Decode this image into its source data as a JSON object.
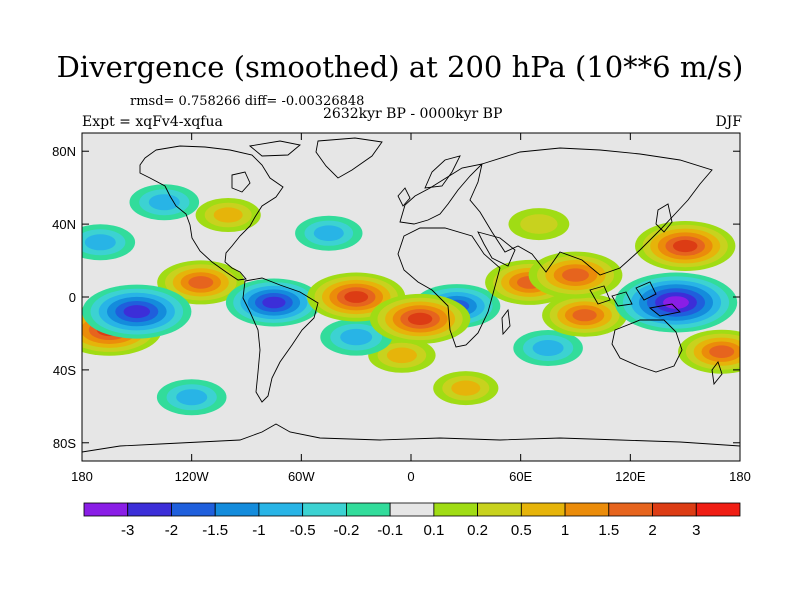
{
  "title": "Divergence (smoothed) at 200 hPa (10**6 m/s)",
  "stats": "rmsd= 0.758266 diff= -0.00326848",
  "period": "2632kyr BP - 0000kyr BP",
  "experiment": "Expt = xqFv4-xqfua",
  "season": "DJF",
  "axes": {
    "x_ticks": [
      {
        "value": -180,
        "label": "180"
      },
      {
        "value": -120,
        "label": "120W"
      },
      {
        "value": -60,
        "label": "60W"
      },
      {
        "value": 0,
        "label": "0"
      },
      {
        "value": 60,
        "label": "60E"
      },
      {
        "value": 120,
        "label": "120E"
      },
      {
        "value": 180,
        "label": "180"
      }
    ],
    "y_ticks": [
      {
        "value": 80,
        "label": "80N"
      },
      {
        "value": 40,
        "label": "40N"
      },
      {
        "value": 0,
        "label": "0"
      },
      {
        "value": -40,
        "label": "40S"
      },
      {
        "value": -80,
        "label": "80S"
      }
    ]
  },
  "colorbar": {
    "colors": [
      "#8a1ee6",
      "#3c2ed8",
      "#1f5fdc",
      "#148cdc",
      "#28b4e6",
      "#3cd2d2",
      "#32dc9b",
      "#e6e6e6",
      "#a0dc14",
      "#c8d21e",
      "#e6b40a",
      "#eb8c0a",
      "#e6641e",
      "#dc3c14",
      "#f01e14"
    ],
    "labels": [
      "-3",
      "-2",
      "-1.5",
      "-1",
      "-0.5",
      "-0.2",
      "-0.1",
      "0.1",
      "0.2",
      "0.5",
      "1",
      "1.5",
      "2",
      "3"
    ]
  },
  "chart_data": {
    "type": "heatmap",
    "title": "Divergence (smoothed) at 200 hPa (10**6 m/s)",
    "projection": "cylindrical equidistant",
    "xlim": [
      -180,
      180
    ],
    "ylim": [
      -90,
      90
    ],
    "levels": [
      -3,
      -2,
      -1.5,
      -1,
      -0.5,
      -0.2,
      -0.1,
      0.1,
      0.2,
      0.5,
      1,
      1.5,
      2,
      3
    ],
    "features": [
      {
        "name": "tropical-west-pacific-convergence",
        "lon": 145,
        "lat": -3,
        "value": -3.2
      },
      {
        "name": "central-pacific-convergence",
        "lon": -150,
        "lat": -8,
        "value": -2.6
      },
      {
        "name": "southern-amazon-convergence",
        "lon": -75,
        "lat": -3,
        "value": -2.0
      },
      {
        "name": "central-africa-convergence",
        "lon": 25,
        "lat": -5,
        "value": -1.6
      },
      {
        "name": "south-atlantic-convergence",
        "lon": -30,
        "lat": -22,
        "value": -0.9
      },
      {
        "name": "north-pacific-convergence",
        "lon": -170,
        "lat": 30,
        "value": -0.8
      },
      {
        "name": "north-atlantic-convergence",
        "lon": -45,
        "lat": 35,
        "value": -0.7
      },
      {
        "name": "indian-ocean-convergence",
        "lon": 75,
        "lat": -28,
        "value": -0.8
      },
      {
        "name": "southern-ocean-convergence",
        "lon": -120,
        "lat": -55,
        "value": -0.8
      },
      {
        "name": "northeast-pacific-convergence",
        "lon": -135,
        "lat": 52,
        "value": -0.8
      },
      {
        "name": "eastern-pacific-divergence",
        "lon": -165,
        "lat": -18,
        "value": 2.4
      },
      {
        "name": "east-pacific-itcz-divergence",
        "lon": -115,
        "lat": 8,
        "value": 1.6
      },
      {
        "name": "tropical-atlantic-divergence",
        "lon": -30,
        "lat": 0,
        "value": 2.1
      },
      {
        "name": "west-africa-divergence",
        "lon": 5,
        "lat": -12,
        "value": 2.2
      },
      {
        "name": "arabian-sea-divergence",
        "lon": 65,
        "lat": 8,
        "value": 1.7
      },
      {
        "name": "bay-of-bengal-divergence",
        "lon": 90,
        "lat": 12,
        "value": 1.9
      },
      {
        "name": "japan-divergence",
        "lon": 150,
        "lat": 28,
        "value": 2.2
      },
      {
        "name": "south-indian-ocean-divergence",
        "lon": 95,
        "lat": -10,
        "value": 1.5
      },
      {
        "name": "south-pacific-divergence",
        "lon": 170,
        "lat": -30,
        "value": 1.6
      },
      {
        "name": "subtropical-south-atlantic-divergence",
        "lon": -5,
        "lat": -32,
        "value": 0.7
      },
      {
        "name": "north-america-divergence",
        "lon": -100,
        "lat": 45,
        "value": 0.6
      },
      {
        "name": "eurasia-divergence",
        "lon": 70,
        "lat": 40,
        "value": 0.4
      },
      {
        "name": "southern-ocean-divergence",
        "lon": 30,
        "lat": -50,
        "value": 0.6
      }
    ]
  }
}
